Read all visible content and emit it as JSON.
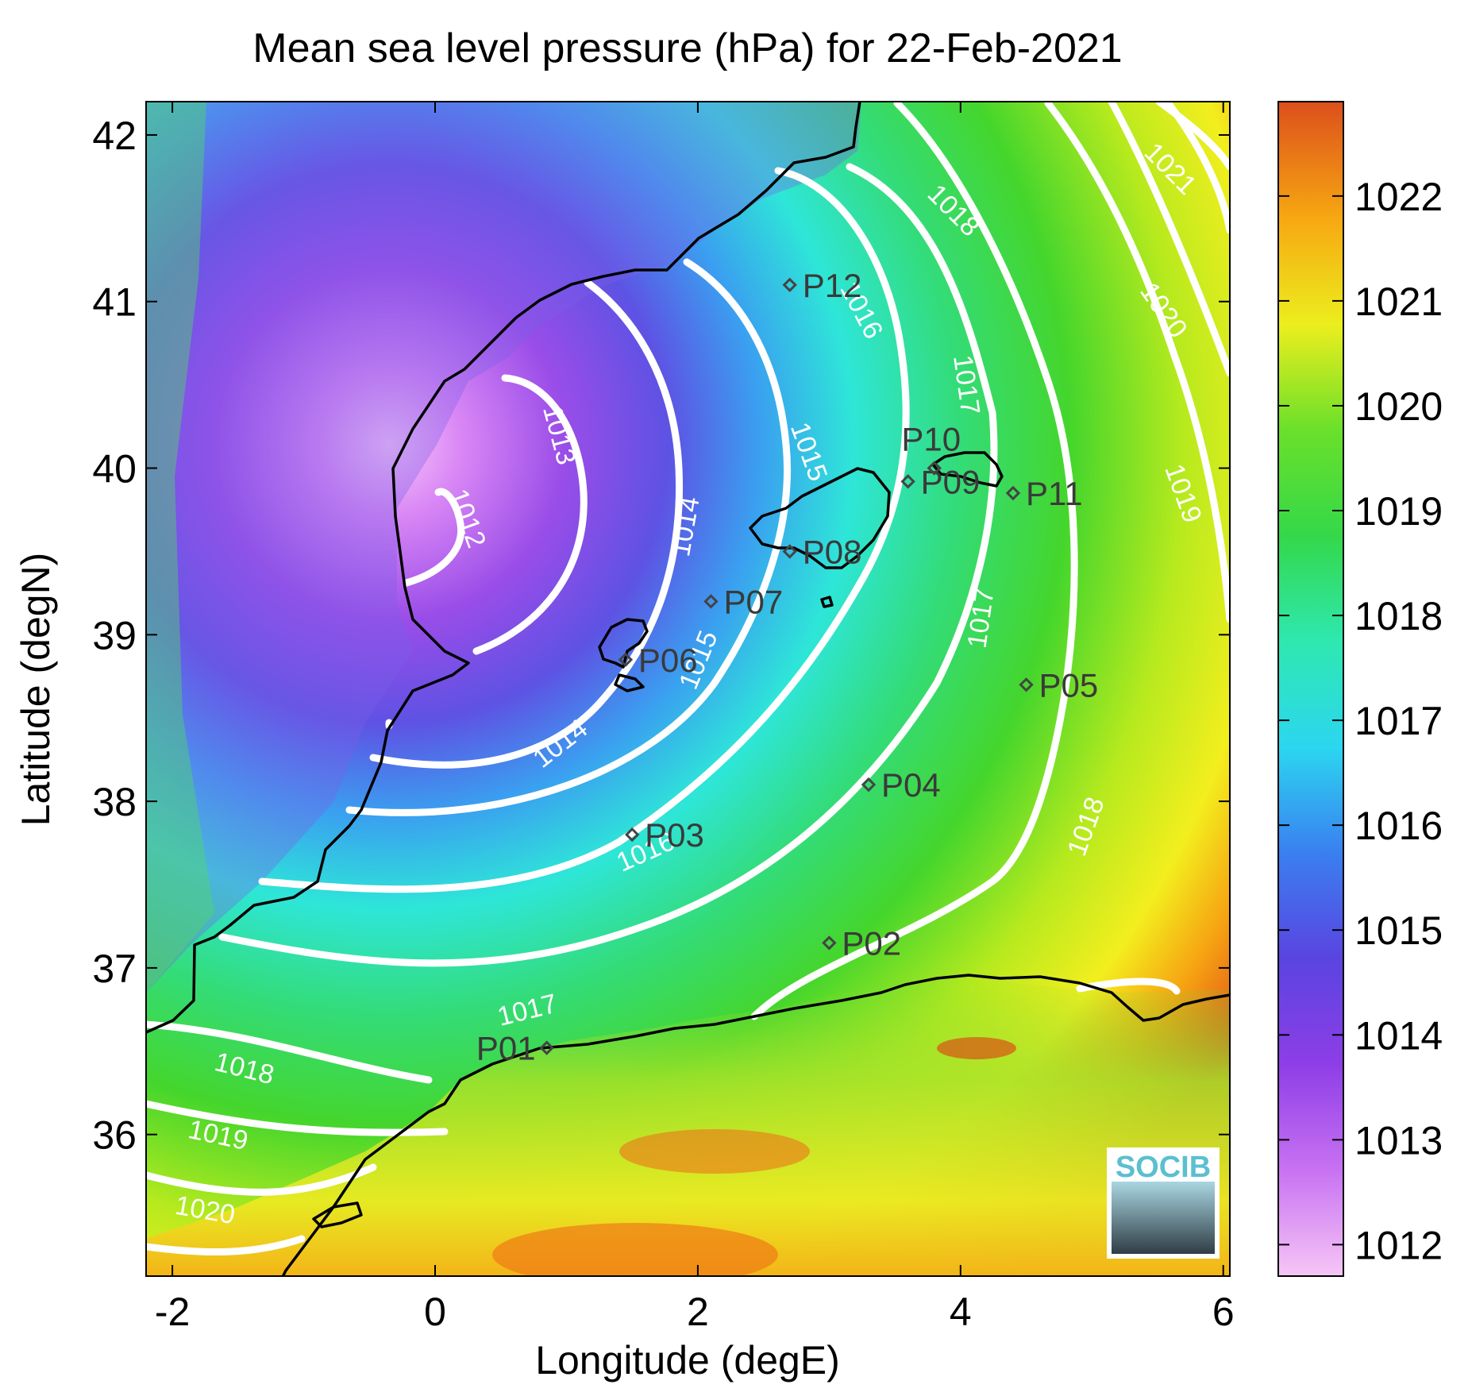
{
  "title": "Mean sea level pressure (hPa) for 22-Feb-2021",
  "xlabel": "Longitude (degE)",
  "ylabel": "Latitude (degN)",
  "logo_text": "SOCIB",
  "colors": {
    "low": "#f3b9f5",
    "mid_low": "#6a3fe0",
    "mid": "#2fe0d8",
    "mid_high": "#3dd63a",
    "high": "#f3ee1e",
    "max": "#e0521a",
    "isobar": "#ffffff",
    "coast": "#000000",
    "marker": "#444444"
  },
  "chart_data": {
    "type": "heatmap",
    "title": "Mean sea level pressure (hPa) for 22-Feb-2021",
    "xlabel": "Longitude (degE)",
    "ylabel": "Latitude (degN)",
    "xlim": [
      -2.2,
      6.05
    ],
    "ylim": [
      35.15,
      42.2
    ],
    "xticks": [
      "-2",
      "0",
      "2",
      "4",
      "6"
    ],
    "xtick_values": [
      -2,
      0,
      2,
      4,
      6
    ],
    "yticks": [
      "36",
      "37",
      "38",
      "39",
      "40",
      "41",
      "42"
    ],
    "ytick_values": [
      36,
      37,
      38,
      39,
      40,
      41,
      42
    ],
    "colorbar": {
      "range": [
        1011.7,
        1022.9
      ],
      "ticks": [
        "1012",
        "1013",
        "1014",
        "1015",
        "1016",
        "1017",
        "1018",
        "1019",
        "1020",
        "1021",
        "1022"
      ],
      "tick_values": [
        1012,
        1013,
        1014,
        1015,
        1016,
        1017,
        1018,
        1019,
        1020,
        1021,
        1022
      ]
    },
    "low_center": {
      "lon": 0.0,
      "lat": 39.65,
      "value": 1012
    },
    "isobar_labels": [
      {
        "text": "1012",
        "lon": 0.25,
        "lat": 39.7,
        "rot": 70
      },
      {
        "text": "1013",
        "lon": 0.95,
        "lat": 40.2,
        "rot": 75
      },
      {
        "text": "1014",
        "lon": 1.9,
        "lat": 39.65,
        "rot": -80
      },
      {
        "text": "1014",
        "lon": 0.95,
        "lat": 38.35,
        "rot": -38
      },
      {
        "text": "1015",
        "lon": 2.85,
        "lat": 40.1,
        "rot": 70
      },
      {
        "text": "1015",
        "lon": 2.0,
        "lat": 38.85,
        "rot": -68
      },
      {
        "text": "1016",
        "lon": 3.25,
        "lat": 40.95,
        "rot": 62
      },
      {
        "text": "1016",
        "lon": 1.6,
        "lat": 37.7,
        "rot": -24
      },
      {
        "text": "1017",
        "lon": 4.05,
        "lat": 40.5,
        "rot": 82
      },
      {
        "text": "1017",
        "lon": 4.15,
        "lat": 39.1,
        "rot": -82
      },
      {
        "text": "1017",
        "lon": 0.7,
        "lat": 36.75,
        "rot": -14
      },
      {
        "text": "1018",
        "lon": 3.95,
        "lat": 41.55,
        "rot": 45
      },
      {
        "text": "1018",
        "lon": 4.95,
        "lat": 37.85,
        "rot": -70
      },
      {
        "text": "1018",
        "lon": -1.45,
        "lat": 36.4,
        "rot": 14
      },
      {
        "text": "1019",
        "lon": 5.7,
        "lat": 39.85,
        "rot": 70
      },
      {
        "text": "1019",
        "lon": -1.65,
        "lat": 36.0,
        "rot": 12
      },
      {
        "text": "1020",
        "lon": 5.55,
        "lat": 40.95,
        "rot": 55
      },
      {
        "text": "1020",
        "lon": -1.75,
        "lat": 35.55,
        "rot": 10
      },
      {
        "text": "1021",
        "lon": 5.6,
        "lat": 41.8,
        "rot": 45
      }
    ],
    "stations": [
      {
        "name": "P01",
        "lon": 0.85,
        "lat": 36.52
      },
      {
        "name": "P02",
        "lon": 3.0,
        "lat": 37.15
      },
      {
        "name": "P03",
        "lon": 1.5,
        "lat": 37.8
      },
      {
        "name": "P04",
        "lon": 3.3,
        "lat": 38.1
      },
      {
        "name": "P05",
        "lon": 4.5,
        "lat": 38.7
      },
      {
        "name": "P06",
        "lon": 1.45,
        "lat": 38.85
      },
      {
        "name": "P07",
        "lon": 2.1,
        "lat": 39.2
      },
      {
        "name": "P08",
        "lon": 2.7,
        "lat": 39.5
      },
      {
        "name": "P09",
        "lon": 3.6,
        "lat": 39.92
      },
      {
        "name": "P10",
        "lon": 3.8,
        "lat": 40.0
      },
      {
        "name": "P11",
        "lon": 4.4,
        "lat": 39.85
      },
      {
        "name": "P12",
        "lon": 2.7,
        "lat": 41.1
      }
    ]
  }
}
